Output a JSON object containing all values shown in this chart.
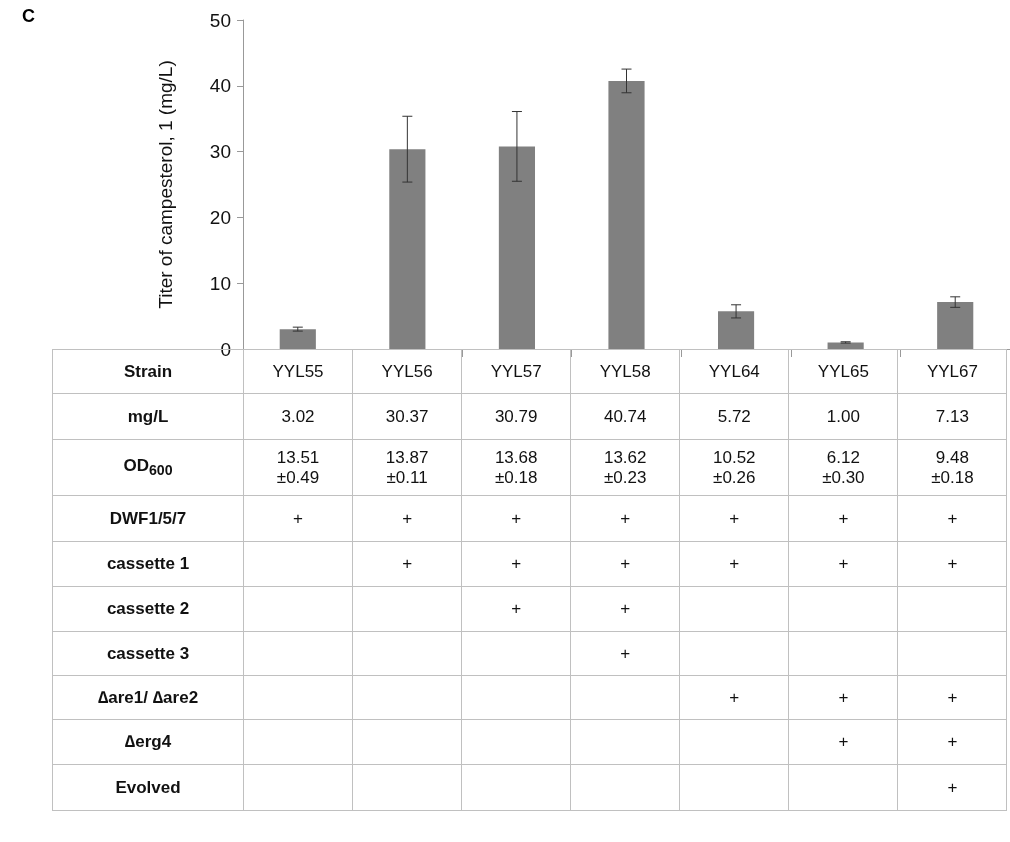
{
  "chart_data": {
    "type": "bar",
    "ylabel": "Titer of campesterol, 1 (mg/L)",
    "categories": [
      "YYL55",
      "YYL56",
      "YYL57",
      "YYL58",
      "YYL64",
      "YYL65",
      "YYL67"
    ],
    "values": [
      3.02,
      30.37,
      30.79,
      40.74,
      5.72,
      1.0,
      7.13
    ],
    "value_labels": [
      "3.02",
      "30.37",
      "30.79",
      "40.74",
      "5.72",
      "1.00",
      "7.13"
    ],
    "errors": [
      0.3,
      5.0,
      5.3,
      1.8,
      1.0,
      0.1,
      0.8
    ],
    "color": "#808080",
    "ylim": [
      0,
      50
    ],
    "yticks": [
      0,
      10,
      20,
      30,
      40,
      50
    ],
    "grid": false,
    "tick_labels": "y",
    "annotations": [
      "C",
      "Strain",
      "mg/L",
      "OD$_{600}$",
      "13.51\n±0.49",
      "13.87\n±0.11",
      "13.68\n±0.18",
      "13.62\n±0.23",
      "10.52\n±0.26",
      "6.12\n±0.30",
      "9.48\n±0.18",
      "DWF1/5/7",
      "+",
      "+",
      "+",
      "+",
      "+",
      "+",
      "+",
      "cassette 1",
      null,
      "+",
      "+",
      "+",
      "+",
      "+",
      "+",
      "cassette 2",
      null,
      null,
      "+",
      "+",
      null,
      null,
      null,
      "cassette 3",
      null,
      null,
      null,
      "+",
      null,
      null,
      null,
      "∆are1/ ∆are2",
      null,
      null,
      null,
      null,
      "+",
      "+",
      "+",
      "∆erg4",
      null,
      null,
      null,
      null,
      null,
      "+",
      "+",
      "Evolved",
      null,
      null,
      null,
      null,
      null,
      null,
      "+"
    ]
  }
}
